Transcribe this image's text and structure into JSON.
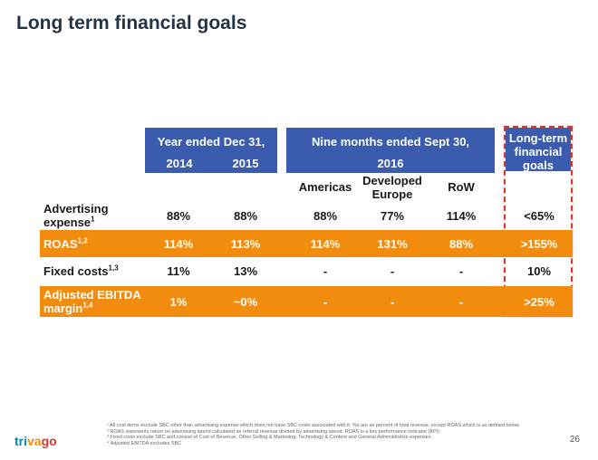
{
  "title": "Long term financial goals",
  "header": {
    "group_year": "Year ended Dec 31,",
    "group_nine": "Nine months ended Sept 30,",
    "year_2014": "2014",
    "year_2015": "2015",
    "year_2016": "2016",
    "col_americas": "Americas",
    "col_developed": "Developed Europe",
    "col_row": "RoW",
    "col_goals": "Long-term financial goals"
  },
  "rows": [
    {
      "label": "Advertising expense",
      "sup": "1",
      "values": [
        "88%",
        "88%",
        "88%",
        "77%",
        "114%",
        "<65%"
      ]
    },
    {
      "label": "ROAS",
      "sup": "1,2",
      "values": [
        "114%",
        "113%",
        "114%",
        "131%",
        "88%",
        ">155%"
      ]
    },
    {
      "label": "Fixed costs",
      "sup": "1,3",
      "values": [
        "11%",
        "13%",
        "-",
        "-",
        "-",
        "10%"
      ]
    },
    {
      "label": "Adjusted EBITDA margin",
      "sup": "1,4",
      "values": [
        "1%",
        "~0%",
        "-",
        "-",
        "-",
        ">25%"
      ]
    }
  ],
  "footnotes": [
    "¹ All cost items exclude SBC other than advertising expense which does not have SBC costs associated with it; %s are as percent of total revenue, except ROAS which is as defined below",
    "² ROAS represents return on advertising spend calculated as referral revenue divided by advertising spend. ROAS is a key performance indicator (KPI)",
    "³ Fixed costs exclude SBC and consist of Cost of Revenue, Other Selling & Marketing, Technology & Content and General Administrative expenses",
    "⁴ Adjusted EBITDA excludes SBC"
  ],
  "logo": {
    "part1": "tri",
    "part2": "va",
    "part3": "go"
  },
  "page_number": "26",
  "colors": {
    "header_blue": "#3a5bae",
    "orange": "#f28c0f",
    "goal_border": "#d9372a"
  }
}
